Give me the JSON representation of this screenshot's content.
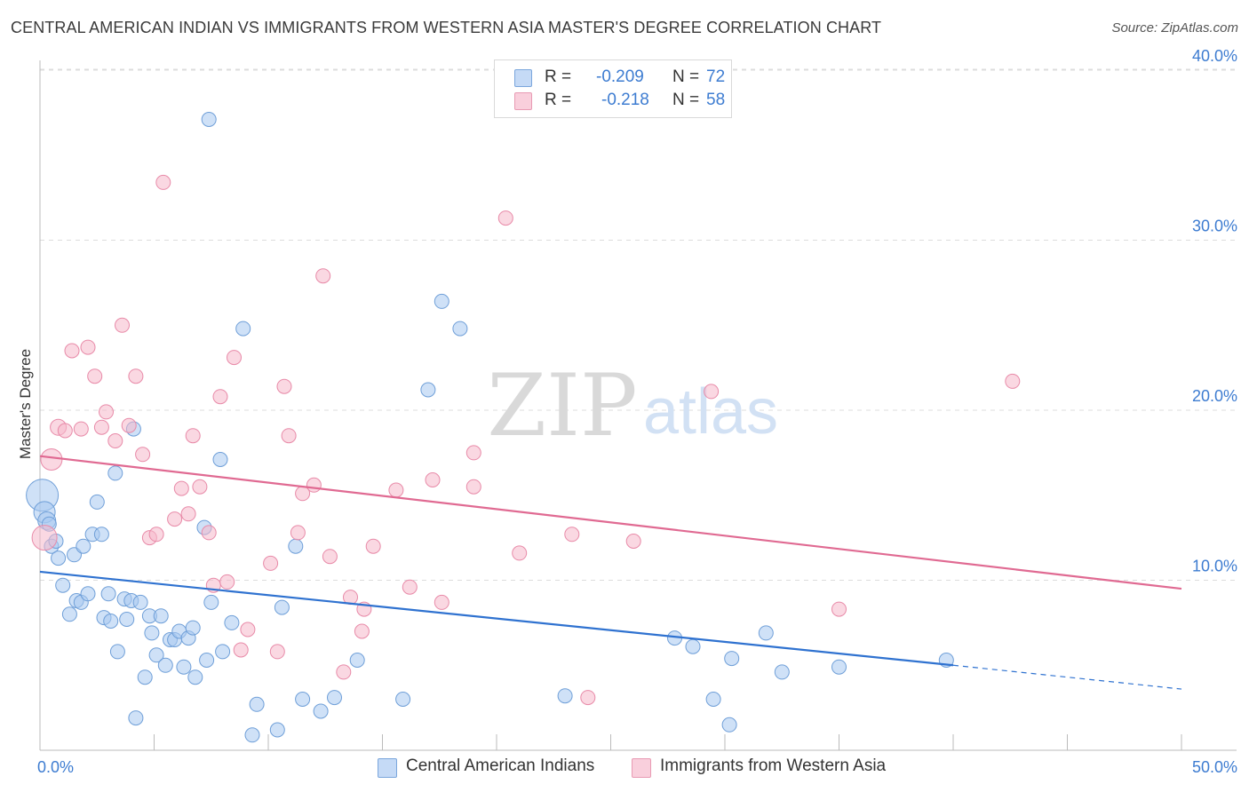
{
  "header": {
    "title": "CENTRAL AMERICAN INDIAN VS IMMIGRANTS FROM WESTERN ASIA MASTER'S DEGREE CORRELATION CHART",
    "source": "Source: ZipAtlas.com"
  },
  "watermark": {
    "zip": "ZIP",
    "atlas": "atlas"
  },
  "stats_legend": {
    "rows": [
      {
        "r_label": "R =",
        "r_value": "-0.209",
        "n_label": "N =",
        "n_value": "72",
        "color": "#a8c8f0"
      },
      {
        "r_label": "R =",
        "r_value": "-0.218",
        "n_label": "N =",
        "n_value": "58",
        "color": "#f5b8cb"
      }
    ]
  },
  "bottom_legend": {
    "items": [
      {
        "label": "Central American Indians",
        "color": "#a8c8f0"
      },
      {
        "label": "Immigrants from Western Asia",
        "color": "#f5b8cb"
      }
    ]
  },
  "chart_data": {
    "type": "scatter",
    "title": "CENTRAL AMERICAN INDIAN VS IMMIGRANTS FROM WESTERN ASIA MASTER'S DEGREE CORRELATION CHART",
    "ylabel": "Master's Degree",
    "xlabel": "",
    "xlim": [
      0,
      50
    ],
    "ylim": [
      0,
      42
    ],
    "x_tick_labels": [
      "0.0%",
      "50.0%"
    ],
    "y_ticks": [
      10,
      20,
      30,
      40
    ],
    "y_tick_labels": [
      "10.0%",
      "20.0%",
      "30.0%",
      "40.0%"
    ],
    "grid": true,
    "legend_position": "bottom",
    "series": [
      {
        "name": "Central American Indians",
        "color": "#a8c8f0",
        "stroke": "#6f9fd8",
        "line_color": "#2f72d0",
        "trend": {
          "x0": 0,
          "y0": 10.5,
          "x1": 40,
          "y1": 5.0,
          "x_dash_end": 50,
          "y_dash_end": 3.6
        },
        "points": [
          [
            0.1,
            15.0,
            18
          ],
          [
            0.2,
            14.0,
            12
          ],
          [
            0.3,
            13.5,
            10
          ],
          [
            0.5,
            12.0,
            8
          ],
          [
            0.7,
            12.3,
            8
          ],
          [
            0.8,
            11.3,
            8
          ],
          [
            1.0,
            9.7,
            8
          ],
          [
            1.3,
            8.0,
            8
          ],
          [
            1.5,
            11.5,
            8
          ],
          [
            1.6,
            8.8,
            8
          ],
          [
            1.8,
            8.7,
            8
          ],
          [
            1.9,
            12.0,
            8
          ],
          [
            2.1,
            9.2,
            8
          ],
          [
            2.3,
            12.7,
            8
          ],
          [
            2.5,
            14.6,
            8
          ],
          [
            2.7,
            12.7,
            8
          ],
          [
            2.8,
            7.8,
            8
          ],
          [
            3.0,
            9.2,
            8
          ],
          [
            3.1,
            7.6,
            8
          ],
          [
            3.3,
            16.3,
            8
          ],
          [
            3.4,
            5.8,
            8
          ],
          [
            3.7,
            8.9,
            8
          ],
          [
            3.8,
            7.7,
            8
          ],
          [
            4.0,
            8.8,
            8
          ],
          [
            4.1,
            18.9,
            8
          ],
          [
            4.2,
            1.9,
            8
          ],
          [
            4.4,
            8.7,
            8
          ],
          [
            4.6,
            4.3,
            8
          ],
          [
            4.8,
            7.9,
            8
          ],
          [
            4.9,
            6.9,
            8
          ],
          [
            5.1,
            5.6,
            8
          ],
          [
            5.3,
            7.9,
            8
          ],
          [
            5.5,
            5.0,
            8
          ],
          [
            5.7,
            6.5,
            8
          ],
          [
            5.9,
            6.5,
            8
          ],
          [
            6.1,
            7.0,
            8
          ],
          [
            6.3,
            4.9,
            8
          ],
          [
            6.5,
            6.6,
            8
          ],
          [
            6.7,
            7.2,
            8
          ],
          [
            6.8,
            4.3,
            8
          ],
          [
            7.2,
            13.1,
            8
          ],
          [
            7.4,
            37.1,
            8
          ],
          [
            7.3,
            5.3,
            8
          ],
          [
            7.5,
            8.7,
            8
          ],
          [
            7.9,
            17.1,
            8
          ],
          [
            8.0,
            5.8,
            8
          ],
          [
            8.4,
            7.5,
            8
          ],
          [
            8.9,
            24.8,
            8
          ],
          [
            9.3,
            0.9,
            8
          ],
          [
            9.5,
            2.7,
            8
          ],
          [
            10.4,
            1.2,
            8
          ],
          [
            10.6,
            8.4,
            8
          ],
          [
            11.2,
            12.0,
            8
          ],
          [
            11.5,
            3.0,
            8
          ],
          [
            12.3,
            2.3,
            8
          ],
          [
            12.9,
            3.1,
            8
          ],
          [
            13.9,
            5.3,
            8
          ],
          [
            15.9,
            3.0,
            8
          ],
          [
            17.0,
            21.2,
            8
          ],
          [
            17.6,
            26.4,
            8
          ],
          [
            18.4,
            24.8,
            8
          ],
          [
            23.0,
            3.2,
            8
          ],
          [
            27.8,
            6.6,
            8
          ],
          [
            28.6,
            6.1,
            8
          ],
          [
            29.5,
            3.0,
            8
          ],
          [
            30.2,
            1.5,
            8
          ],
          [
            30.3,
            5.4,
            8
          ],
          [
            31.8,
            6.9,
            8
          ],
          [
            32.5,
            4.6,
            8
          ],
          [
            35.0,
            4.9,
            8
          ],
          [
            39.7,
            5.3,
            8
          ],
          [
            0.4,
            13.3,
            8
          ]
        ]
      },
      {
        "name": "Immigrants from Western Asia",
        "color": "#f5b8cb",
        "stroke": "#e88aa8",
        "line_color": "#e06a92",
        "trend": {
          "x0": 0,
          "y0": 17.3,
          "x1": 50,
          "y1": 9.5
        },
        "points": [
          [
            0.2,
            12.5,
            14
          ],
          [
            0.5,
            17.1,
            12
          ],
          [
            0.8,
            19.0,
            9
          ],
          [
            1.1,
            18.8,
            8
          ],
          [
            1.4,
            23.5,
            8
          ],
          [
            1.8,
            18.9,
            8
          ],
          [
            2.1,
            23.7,
            8
          ],
          [
            2.4,
            22.0,
            8
          ],
          [
            2.7,
            19.0,
            8
          ],
          [
            2.9,
            19.9,
            8
          ],
          [
            3.3,
            18.2,
            8
          ],
          [
            3.6,
            25.0,
            8
          ],
          [
            3.9,
            19.1,
            8
          ],
          [
            4.2,
            22.0,
            8
          ],
          [
            4.5,
            17.4,
            8
          ],
          [
            4.8,
            12.5,
            8
          ],
          [
            5.1,
            12.7,
            8
          ],
          [
            5.4,
            33.4,
            8
          ],
          [
            5.9,
            13.6,
            8
          ],
          [
            6.2,
            15.4,
            8
          ],
          [
            6.5,
            13.9,
            8
          ],
          [
            6.7,
            18.5,
            8
          ],
          [
            7.0,
            15.5,
            8
          ],
          [
            7.4,
            12.8,
            8
          ],
          [
            7.6,
            9.7,
            8
          ],
          [
            7.9,
            20.8,
            8
          ],
          [
            8.2,
            9.9,
            8
          ],
          [
            8.5,
            23.1,
            8
          ],
          [
            8.8,
            5.9,
            8
          ],
          [
            9.1,
            7.1,
            8
          ],
          [
            10.1,
            11.0,
            8
          ],
          [
            10.4,
            5.8,
            8
          ],
          [
            10.7,
            21.4,
            8
          ],
          [
            10.9,
            18.5,
            8
          ],
          [
            11.3,
            12.8,
            8
          ],
          [
            11.5,
            15.1,
            8
          ],
          [
            12.0,
            15.6,
            8
          ],
          [
            12.4,
            27.9,
            8
          ],
          [
            12.7,
            11.4,
            8
          ],
          [
            13.3,
            4.6,
            8
          ],
          [
            13.6,
            9.0,
            8
          ],
          [
            14.1,
            7.0,
            8
          ],
          [
            14.2,
            8.3,
            8
          ],
          [
            14.6,
            12.0,
            8
          ],
          [
            15.6,
            15.3,
            8
          ],
          [
            16.2,
            9.6,
            8
          ],
          [
            17.2,
            15.9,
            8
          ],
          [
            17.6,
            8.7,
            8
          ],
          [
            19.0,
            17.5,
            8
          ],
          [
            19.0,
            15.5,
            8
          ],
          [
            20.4,
            31.3,
            8
          ],
          [
            21.0,
            11.6,
            8
          ],
          [
            23.3,
            12.7,
            8
          ],
          [
            24.0,
            3.1,
            8
          ],
          [
            26.0,
            12.3,
            8
          ],
          [
            29.4,
            21.1,
            8
          ],
          [
            35.0,
            8.3,
            8
          ],
          [
            42.6,
            21.7,
            8
          ]
        ]
      }
    ]
  }
}
